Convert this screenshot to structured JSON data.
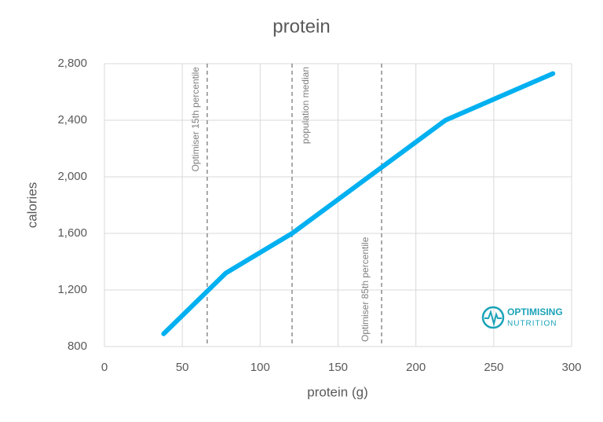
{
  "chart_data": {
    "type": "line",
    "title": "protein",
    "xlabel": "protein (g)",
    "ylabel": "calories",
    "x": [
      38,
      78,
      120.5,
      219,
      288
    ],
    "values": [
      890,
      1320,
      1600,
      2400,
      2730
    ],
    "color": "#00b0f0",
    "xlim": [
      0,
      300
    ],
    "xticks": [
      0,
      50,
      100,
      150,
      200,
      250,
      300
    ],
    "ylim": [
      800,
      2800
    ],
    "yticks": [
      {
        "value": 800,
        "label": "800"
      },
      {
        "value": 1200,
        "label": "1,200"
      },
      {
        "value": 1600,
        "label": "1,600"
      },
      {
        "value": 2000,
        "label": "2,000"
      },
      {
        "value": 2400,
        "label": "2,400"
      },
      {
        "value": 2800,
        "label": "2,800"
      }
    ],
    "grid": true,
    "annotations": [
      {
        "x": 66,
        "label": "Optimiser 15th percentile"
      },
      {
        "x": 120.5,
        "label": "population median"
      },
      {
        "x": 178,
        "label": "Optimiser 85th percentile"
      }
    ],
    "logo": {
      "line1": "OPTIMISING",
      "line2": "NUTRITION"
    }
  }
}
